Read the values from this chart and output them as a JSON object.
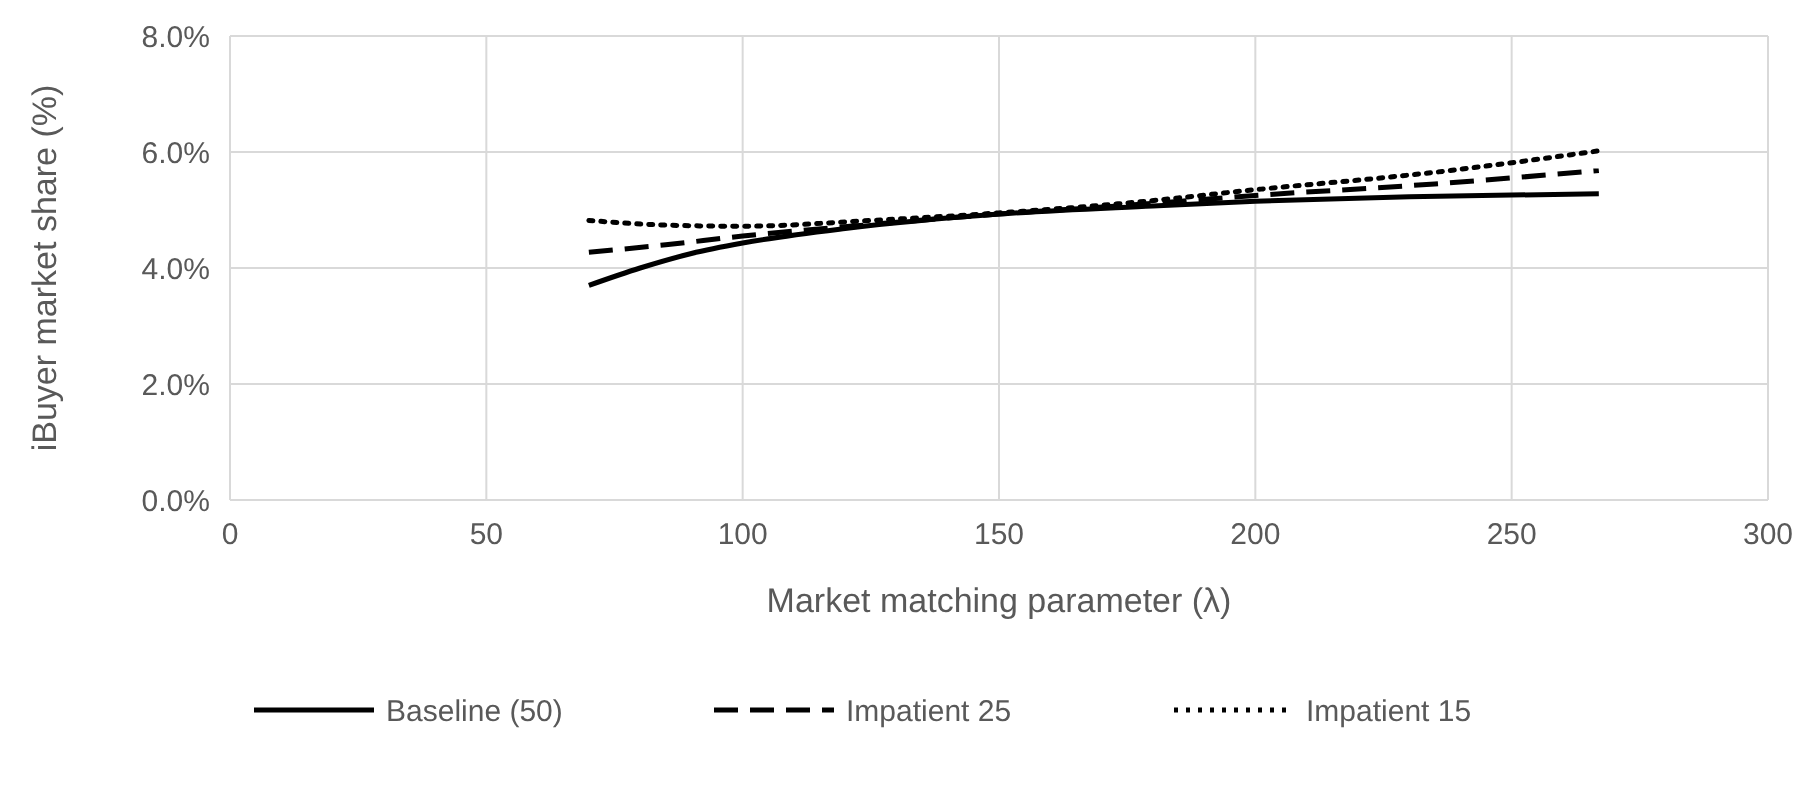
{
  "chart_data": {
    "type": "line",
    "xlabel": "Market matching parameter (λ)",
    "ylabel": "iBuyer market share (%)",
    "xlim": [
      0,
      300
    ],
    "xticks": [
      0,
      50,
      100,
      150,
      200,
      250,
      300
    ],
    "ylim": [
      0,
      8
    ],
    "yticks": [
      {
        "value": 0,
        "label": "0.0%"
      },
      {
        "value": 2,
        "label": "2.0%"
      },
      {
        "value": 4,
        "label": "4.0%"
      },
      {
        "value": 6,
        "label": "6.0%"
      },
      {
        "value": 8,
        "label": "8.0%"
      }
    ],
    "grid": true,
    "legend": "bottom",
    "series": [
      {
        "name": "Baseline (50)",
        "color": "#000000",
        "line_style": "solid",
        "x": [
          70,
          80,
          90,
          100,
          120,
          150,
          180,
          200,
          230,
          267
        ],
        "values": [
          3.7,
          4.0,
          4.25,
          4.43,
          4.68,
          4.93,
          5.07,
          5.15,
          5.23,
          5.28
        ]
      },
      {
        "name": "Impatient 25",
        "color": "#000000",
        "line_style": "dashed",
        "x": [
          70,
          85,
          100,
          125,
          150,
          175,
          200,
          235,
          267
        ],
        "values": [
          4.27,
          4.4,
          4.55,
          4.75,
          4.93,
          5.08,
          5.25,
          5.45,
          5.68
        ]
      },
      {
        "name": "Impatient 15",
        "color": "#000000",
        "line_style": "dotted",
        "x": [
          70,
          85,
          100,
          125,
          150,
          175,
          200,
          235,
          267
        ],
        "values": [
          4.82,
          4.74,
          4.72,
          4.82,
          4.95,
          5.12,
          5.35,
          5.65,
          6.02
        ]
      }
    ]
  }
}
